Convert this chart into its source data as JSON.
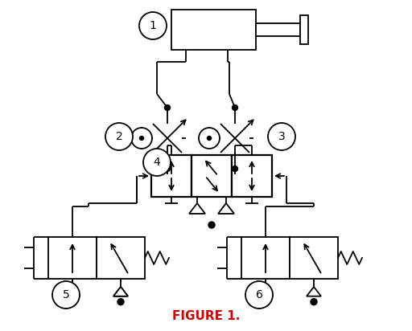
{
  "title": "FIGURE 1.",
  "title_color": "#cc0000",
  "title_fontsize": 11,
  "background_color": "#ffffff",
  "line_color": "#000000",
  "label_color": "#000000",
  "figsize": [
    5.12,
    4.12
  ],
  "dpi": 100
}
